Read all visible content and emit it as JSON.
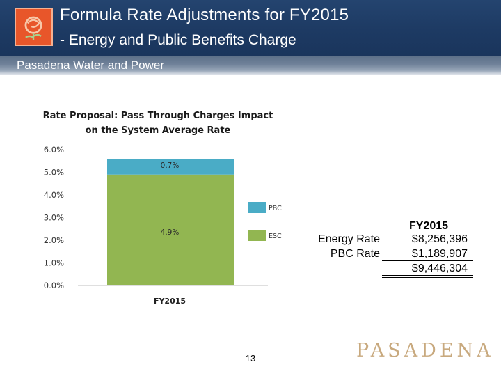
{
  "header": {
    "title_line1": "Formula Rate Adjustments for FY2015",
    "title_line2": "- Energy and Public Benefits Charge",
    "subtitle": "Pasadena Water and Power"
  },
  "colors": {
    "header_bg": "#1d3a63",
    "esc": "#92b651",
    "pbc": "#4aacc6",
    "brand": "#c8a97e",
    "logo": "#e8562a"
  },
  "chart_data": {
    "type": "bar",
    "stacked": true,
    "title_lines": [
      "Rate Proposal: Pass Through Charges Impact",
      "on the System Average Rate"
    ],
    "categories": [
      "FY2015"
    ],
    "series": [
      {
        "name": "ESC",
        "values": [
          4.9
        ],
        "label": "4.9%"
      },
      {
        "name": "PBC",
        "values": [
          0.7
        ],
        "label": "0.7%"
      }
    ],
    "ylim": [
      0,
      6
    ],
    "yticks": [
      "0.0%",
      "1.0%",
      "2.0%",
      "3.0%",
      "4.0%",
      "5.0%",
      "6.0%"
    ],
    "legend": [
      "PBC",
      "ESC"
    ],
    "legend_position": "right"
  },
  "table": {
    "header": "FY2015",
    "rows": [
      {
        "label": "Energy Rate",
        "value": "$8,256,396"
      },
      {
        "label": "PBC Rate",
        "value": "$1,189,907"
      }
    ],
    "total": "$9,446,304"
  },
  "footer": {
    "page_number": "13",
    "brand": "PASADENA"
  }
}
